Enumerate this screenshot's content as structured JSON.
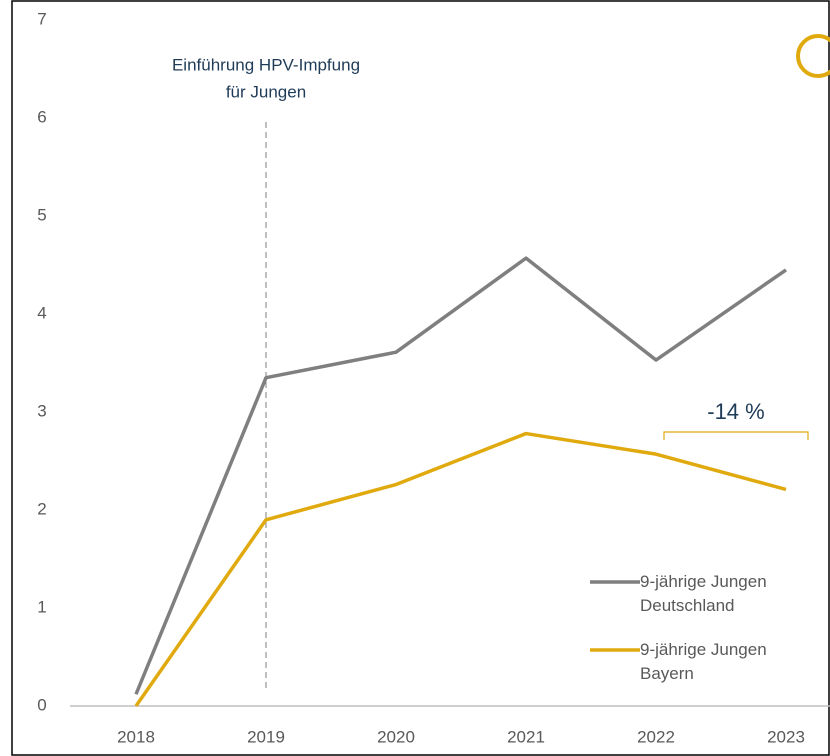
{
  "chart_data": {
    "type": "line",
    "categories": [
      "2018",
      "2019",
      "2020",
      "2021",
      "2022",
      "2023"
    ],
    "series": [
      {
        "name": "9-jährige Jungen Deutschland",
        "color": "#7f7f7f",
        "values": [
          0.12,
          3.35,
          3.61,
          4.57,
          3.53,
          4.45
        ]
      },
      {
        "name": "9-jährige Jungen Bayern",
        "color": "#e0aa0f",
        "values": [
          0,
          1.9,
          2.26,
          2.78,
          2.57,
          2.21
        ]
      }
    ],
    "ylim": [
      0,
      7
    ],
    "yticks": [
      0,
      1,
      2,
      3,
      4,
      5,
      6,
      7
    ],
    "grid": false,
    "marker_annotation": [
      "Einführung HPV-Impfung",
      "für Jungen"
    ],
    "change_annotation": "-14 %"
  }
}
